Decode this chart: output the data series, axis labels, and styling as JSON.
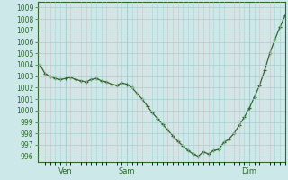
{
  "background_color": "#cce8e8",
  "line_color": "#2d6a2d",
  "marker_color": "#2d6a2d",
  "grid_major_color": "#aacece",
  "grid_minor_color": "#ddbcbc",
  "axis_label_color": "#2d6a2d",
  "spine_color": "#2d6a2d",
  "ylim": [
    995.5,
    1009.5
  ],
  "yticks": [
    996,
    997,
    998,
    999,
    1000,
    1001,
    1002,
    1003,
    1004,
    1005,
    1006,
    1007,
    1008,
    1009
  ],
  "xtick_labels": [
    "Ven",
    "Sam",
    "Dim"
  ],
  "xtick_positions": [
    5,
    17,
    41
  ],
  "total_points": 49,
  "values": [
    1004.0,
    1003.2,
    1003.0,
    1002.8,
    1002.7,
    1002.8,
    1002.9,
    1002.7,
    1002.6,
    1002.5,
    1002.7,
    1002.8,
    1002.6,
    1002.5,
    1002.3,
    1002.2,
    1002.4,
    1002.3,
    1002.0,
    1001.5,
    1001.0,
    1000.4,
    999.8,
    999.3,
    998.8,
    998.3,
    997.8,
    997.3,
    996.9,
    996.5,
    996.2,
    996.0,
    996.4,
    996.2,
    996.5,
    996.6,
    997.2,
    997.5,
    998.0,
    998.7,
    999.4,
    1000.2,
    1001.2,
    1002.2,
    1003.5,
    1005.0,
    1006.2,
    1007.3,
    1008.3
  ]
}
